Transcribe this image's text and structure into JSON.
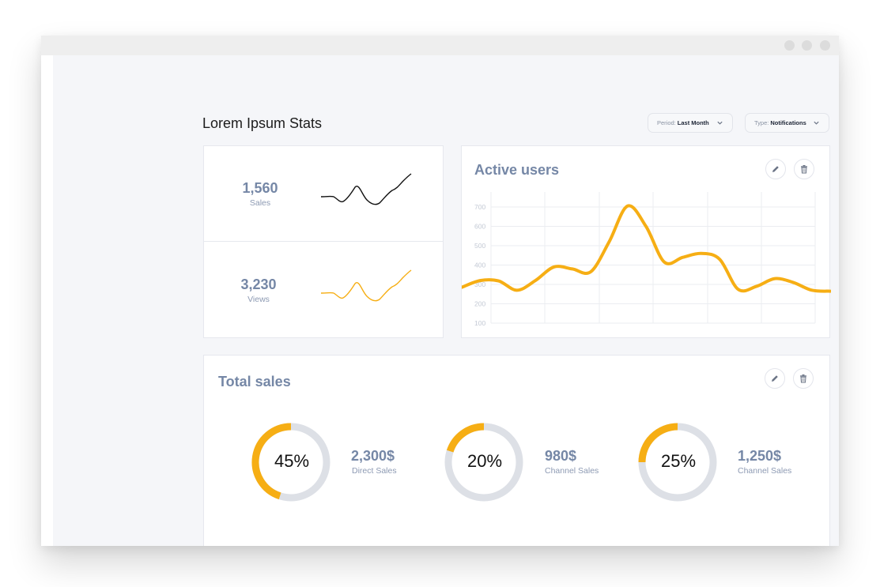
{
  "page_title": "Lorem Ipsum Stats",
  "filters": {
    "period": {
      "label": "Period:",
      "value": "Last Month"
    },
    "type": {
      "label": "Type:",
      "value": "Notifications"
    }
  },
  "stats": [
    {
      "value": "1,560",
      "label": "Sales",
      "sparkline_color": "#111111"
    },
    {
      "value": "3,230",
      "label": "Views",
      "sparkline_color": "#f6ae14"
    }
  ],
  "active_users": {
    "title": "Active users",
    "edit_icon": "pencil-icon",
    "delete_icon": "trash-icon"
  },
  "total_sales": {
    "title": "Total sales",
    "edit_icon": "pencil-icon",
    "delete_icon": "trash-icon",
    "items": [
      {
        "percent_label": "45%",
        "percent": 45,
        "amount": "2,300$",
        "label": "Direct Sales"
      },
      {
        "percent_label": "20%",
        "percent": 20,
        "amount": "980$",
        "label": "Channel Sales"
      },
      {
        "percent_label": "25%",
        "percent": 25,
        "amount": "1,250$",
        "label": "Channel Sales"
      }
    ]
  },
  "colors": {
    "accent": "#f6ae14",
    "title_blue": "#7587a6",
    "track": "#dde0e6",
    "page_bg": "#f5f6f9"
  },
  "chart_data": {
    "type": "line",
    "title": "Active users",
    "x": [
      0,
      1,
      2,
      3,
      4,
      5,
      6,
      7,
      8,
      9,
      10,
      11,
      12,
      13,
      14,
      15,
      16,
      17,
      18,
      19,
      20
    ],
    "series": [
      {
        "values": [
          285,
          320,
          318,
          270,
          320,
          390,
          380,
          365,
          520,
          705,
          600,
          415,
          440,
          460,
          430,
          275,
          290,
          330,
          310,
          270,
          265
        ]
      }
    ],
    "y_ticks": [
      "700",
      "600",
      "500",
      "400",
      "300",
      "200",
      "100"
    ],
    "ylim": [
      100,
      700
    ],
    "grid": true
  }
}
